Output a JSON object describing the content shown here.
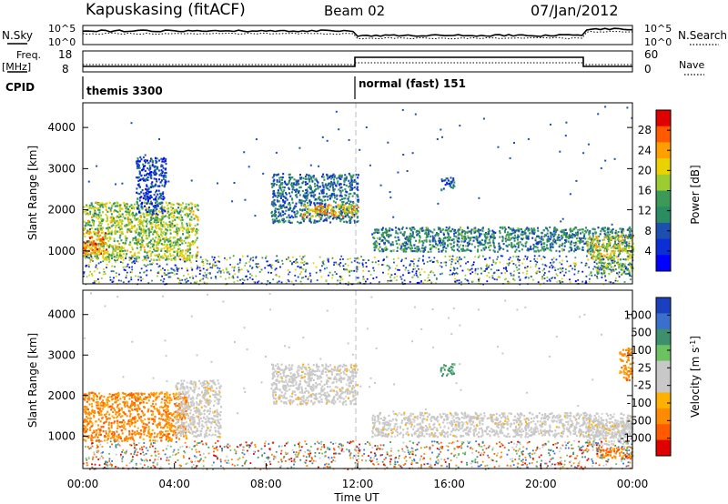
{
  "header": {
    "station": "Kapuskasing (fitACF)",
    "beam": "Beam 02",
    "date": "07/Jan/2012"
  },
  "status_panels": {
    "nsky_label": "N.Sky",
    "nsky_ticks": [
      "10^5",
      "10^0"
    ],
    "nsearch_label": "N.Search",
    "nsearch_ticks": [
      "10^5",
      "10^0"
    ],
    "freq_label": "Freq.",
    "freq_unit": "[MHz]",
    "freq_ticks": [
      "18",
      "8"
    ],
    "nave_label": "Nave",
    "nave_ticks": [
      "60",
      "0"
    ],
    "cpid_label": "CPID",
    "cpid_modes": [
      {
        "name": "themis 3300",
        "start_hour": 0
      },
      {
        "name": "normal (fast) 151",
        "start_hour": 12
      }
    ]
  },
  "chart_data": [
    {
      "type": "heatmap",
      "name": "power",
      "ylabel": "Slant Range [km]",
      "y_ticks": [
        "1000",
        "2000",
        "3000",
        "4000"
      ],
      "ylim": [
        200,
        4600
      ],
      "xlim": [
        0,
        24
      ],
      "colorbar_label": "Power [dB]",
      "colorbar_ticks": [
        "28",
        "24",
        "20",
        "16",
        "12",
        "8",
        "4"
      ],
      "colorbar_colors": [
        "#e00000",
        "#ff5a00",
        "#ff9f00",
        "#e9d200",
        "#9bcd32",
        "#3c9a58",
        "#2a8c63",
        "#1d4fb0",
        "#0b2ed6",
        "#0000ff"
      ],
      "regions": [
        {
          "t0": 0.0,
          "t1": 5.0,
          "r0": 800,
          "r1": 2200,
          "level": 0.55
        },
        {
          "t0": 0.0,
          "t1": 1.0,
          "r0": 900,
          "r1": 1500,
          "level": 0.8
        },
        {
          "t0": 2.3,
          "t1": 3.6,
          "r0": 1900,
          "r1": 3300,
          "level": 0.2
        },
        {
          "t0": 8.2,
          "t1": 12.0,
          "r0": 1700,
          "r1": 2900,
          "level": 0.3
        },
        {
          "t0": 9.5,
          "t1": 12.0,
          "r0": 1850,
          "r1": 2150,
          "level": 0.7
        },
        {
          "t0": 12.6,
          "t1": 24.0,
          "r0": 1000,
          "r1": 1600,
          "level": 0.35
        },
        {
          "t0": 15.6,
          "t1": 16.2,
          "r0": 2500,
          "r1": 2800,
          "level": 0.25
        },
        {
          "t0": 22.0,
          "t1": 24.0,
          "r0": 800,
          "r1": 1400,
          "level": 0.6
        },
        {
          "t0": 22.4,
          "t1": 24.0,
          "r0": 450,
          "r1": 750,
          "level": 0.45
        }
      ],
      "noise": {
        "r0": 200,
        "r1": 900,
        "level": 0.3
      }
    },
    {
      "type": "heatmap",
      "name": "velocity",
      "ylabel": "Slant Range [km]",
      "y_ticks": [
        "1000",
        "2000",
        "3000",
        "4000"
      ],
      "ylim": [
        200,
        4600
      ],
      "xlim": [
        0,
        24
      ],
      "x_ticks": [
        "00:00",
        "04:00",
        "08:00",
        "12:00",
        "16:00",
        "20:00",
        "00:00"
      ],
      "xlabel": "Time UT",
      "colorbar_label": "Velocity [m s^-1]",
      "colorbar_ticks": [
        "1000",
        "500",
        "100",
        "25",
        "-25",
        "-100",
        "-500",
        "-1000"
      ],
      "colorbar_colors": [
        "#1a3fbf",
        "#3a6fcc",
        "#3e8f6e",
        "#6cc160",
        "#c8c8c8",
        "#c8c8c8",
        "#ffb000",
        "#ff8c00",
        "#ff5a00",
        "#e00000"
      ],
      "regions": [
        {
          "t0": 0.0,
          "t1": 4.5,
          "r0": 900,
          "r1": 2100,
          "kind": "neg"
        },
        {
          "t0": 4.0,
          "t1": 6.0,
          "r0": 1000,
          "r1": 2400,
          "kind": "zero"
        },
        {
          "t0": 8.2,
          "t1": 12.0,
          "r0": 1800,
          "r1": 2800,
          "kind": "zero"
        },
        {
          "t0": 12.6,
          "t1": 24.0,
          "r0": 1000,
          "r1": 1600,
          "kind": "zero"
        },
        {
          "t0": 15.6,
          "t1": 16.2,
          "r0": 2500,
          "r1": 2800,
          "kind": "pos"
        },
        {
          "t0": 22.0,
          "t1": 24.0,
          "r0": 800,
          "r1": 1400,
          "kind": "zero"
        },
        {
          "t0": 22.4,
          "t1": 24.0,
          "r0": 450,
          "r1": 750,
          "kind": "neg"
        },
        {
          "t0": 23.4,
          "t1": 24.0,
          "r0": 2400,
          "r1": 3200,
          "kind": "neg"
        }
      ]
    }
  ]
}
